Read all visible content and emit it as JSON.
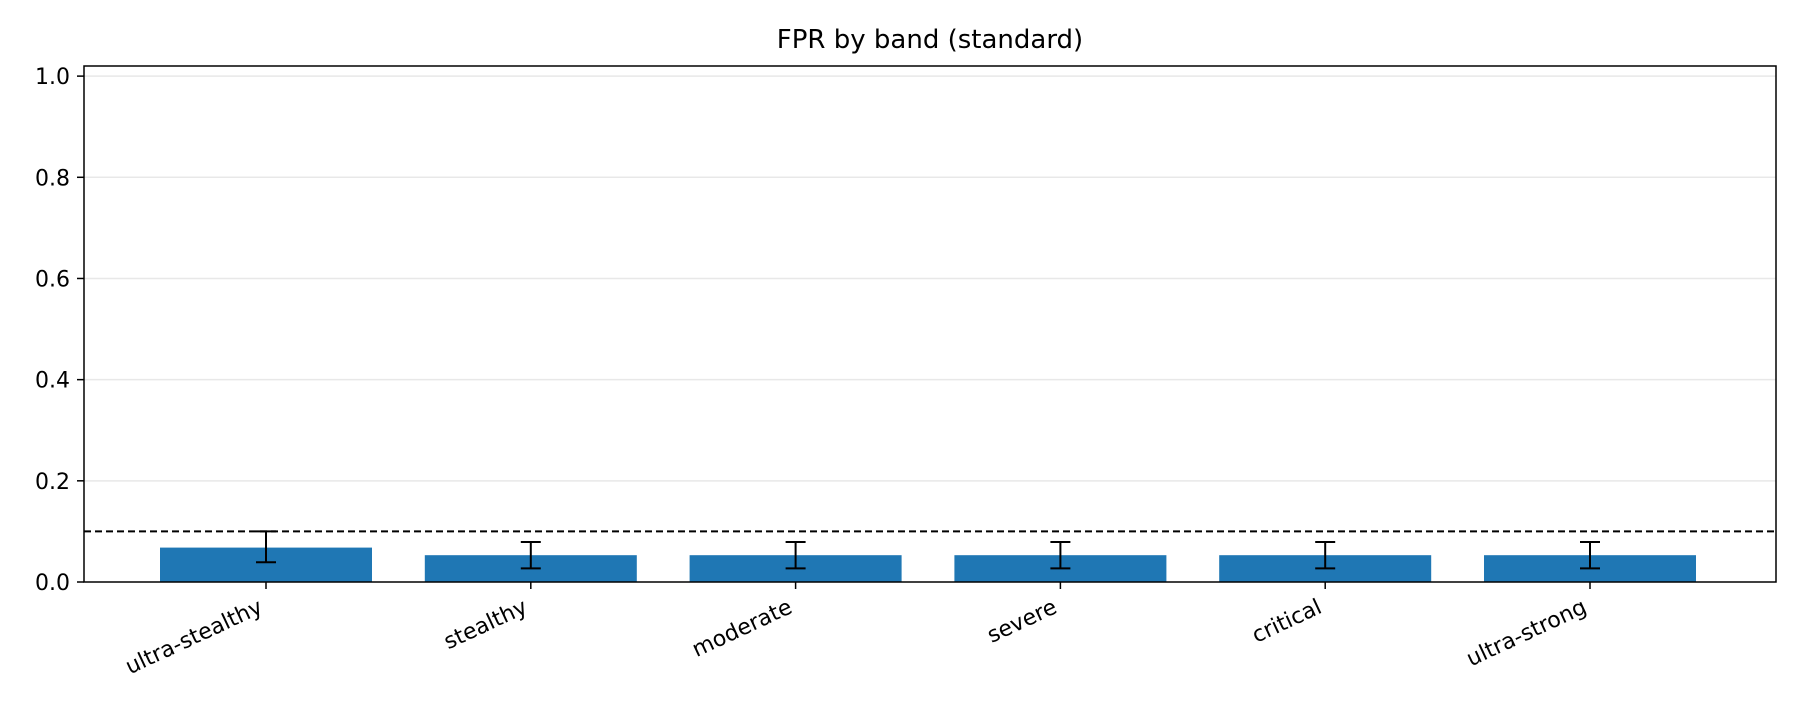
{
  "chart_data": {
    "type": "bar",
    "title": "FPR by band (standard)",
    "xlabel": "",
    "ylabel": "",
    "categories": [
      "ultra-stealthy",
      "stealthy",
      "moderate",
      "severe",
      "critical",
      "ultra-strong"
    ],
    "values": [
      0.068,
      0.053,
      0.053,
      0.053,
      0.053,
      0.053
    ],
    "error_low": [
      0.039,
      0.027,
      0.027,
      0.027,
      0.027,
      0.027
    ],
    "error_high": [
      0.1,
      0.079,
      0.079,
      0.079,
      0.079,
      0.079
    ],
    "reference_line": {
      "value": 0.1,
      "style": "dashed"
    },
    "ylim": [
      0,
      1.02
    ],
    "yticks": [
      "0.0",
      "0.2",
      "0.4",
      "0.6",
      "0.8",
      "1.0"
    ],
    "ytick_values": [
      0.0,
      0.2,
      0.4,
      0.6,
      0.8,
      1.0
    ],
    "grid": "horizontal",
    "legend": "none",
    "colors": {
      "bar": "#1f77b4",
      "error": "#000000",
      "grid": "#e8e8e8",
      "reference": "#000000"
    }
  }
}
